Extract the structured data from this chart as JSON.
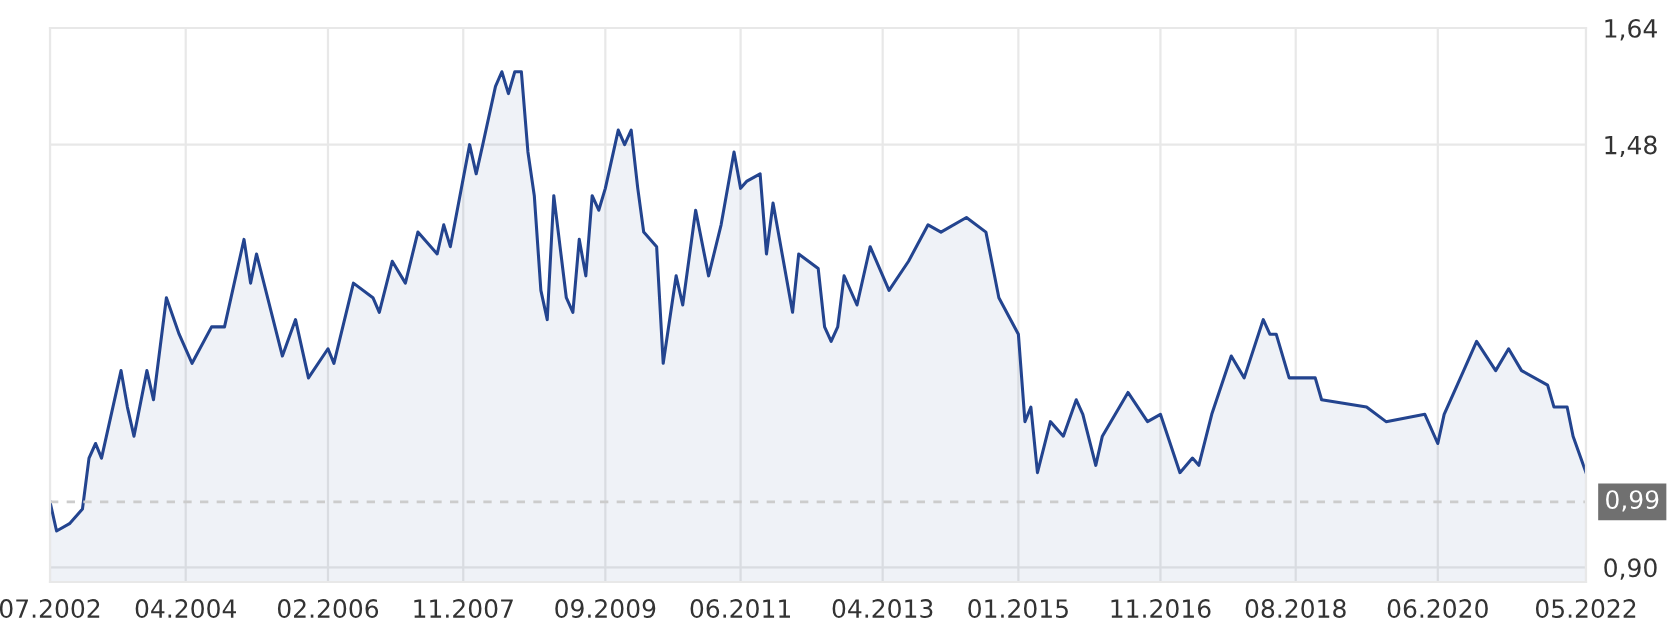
{
  "chart_data": {
    "type": "area",
    "x": [
      "2002-07",
      "2002-08",
      "2002-10",
      "2002-12",
      "2003-01",
      "2003-02",
      "2003-03",
      "2003-06",
      "2003-07",
      "2003-08",
      "2003-10",
      "2003-11",
      "2004-01",
      "2004-03",
      "2004-05",
      "2004-08",
      "2004-10",
      "2005-01",
      "2005-02",
      "2005-03",
      "2005-07",
      "2005-09",
      "2005-11",
      "2006-02",
      "2006-03",
      "2006-06",
      "2006-09",
      "2006-10",
      "2006-12",
      "2007-02",
      "2007-04",
      "2007-07",
      "2007-08",
      "2007-09",
      "2007-12",
      "2008-01",
      "2008-02",
      "2008-04",
      "2008-05",
      "2008-06",
      "2008-07",
      "2008-08",
      "2008-09",
      "2008-10",
      "2008-11",
      "2008-12",
      "2009-01",
      "2009-03",
      "2009-04",
      "2009-05",
      "2009-06",
      "2009-07",
      "2009-08",
      "2009-09",
      "2009-11",
      "2009-12",
      "2010-01",
      "2010-02",
      "2010-03",
      "2010-05",
      "2010-06",
      "2010-08",
      "2010-09",
      "2010-11",
      "2011-01",
      "2011-03",
      "2011-05",
      "2011-06",
      "2011-07",
      "2011-09",
      "2011-10",
      "2011-11",
      "2012-02",
      "2012-03",
      "2012-06",
      "2012-07",
      "2012-08",
      "2012-09",
      "2012-10",
      "2012-12",
      "2013-02",
      "2013-05",
      "2013-08",
      "2013-11",
      "2014-01",
      "2014-05",
      "2014-08",
      "2014-10",
      "2015-01",
      "2015-02",
      "2015-03",
      "2015-04",
      "2015-06",
      "2015-08",
      "2015-10",
      "2015-11",
      "2016-01",
      "2016-02",
      "2016-06",
      "2016-09",
      "2016-11",
      "2017-02",
      "2017-04",
      "2017-05",
      "2017-07",
      "2017-10",
      "2017-12",
      "2018-03",
      "2018-04",
      "2018-05",
      "2018-07",
      "2018-11",
      "2018-12",
      "2019-07",
      "2019-10",
      "2020-04",
      "2020-06",
      "2020-07",
      "2020-10",
      "2020-12",
      "2021-03",
      "2021-05",
      "2021-07",
      "2021-11",
      "2021-12",
      "2022-02",
      "2022-03",
      "2022-05"
    ],
    "series": [
      {
        "color": "#23448f",
        "values": [
          0.99,
          0.95,
          0.96,
          0.98,
          1.05,
          1.07,
          1.05,
          1.17,
          1.12,
          1.08,
          1.17,
          1.13,
          1.27,
          1.22,
          1.18,
          1.23,
          1.23,
          1.35,
          1.29,
          1.33,
          1.19,
          1.24,
          1.16,
          1.2,
          1.18,
          1.29,
          1.27,
          1.25,
          1.32,
          1.29,
          1.36,
          1.33,
          1.37,
          1.34,
          1.48,
          1.44,
          1.48,
          1.56,
          1.58,
          1.55,
          1.58,
          1.58,
          1.47,
          1.41,
          1.28,
          1.24,
          1.41,
          1.27,
          1.25,
          1.35,
          1.3,
          1.41,
          1.39,
          1.42,
          1.5,
          1.48,
          1.5,
          1.42,
          1.36,
          1.34,
          1.18,
          1.3,
          1.26,
          1.39,
          1.3,
          1.37,
          1.47,
          1.42,
          1.43,
          1.44,
          1.33,
          1.4,
          1.25,
          1.33,
          1.31,
          1.23,
          1.21,
          1.23,
          1.3,
          1.26,
          1.34,
          1.28,
          1.32,
          1.37,
          1.36,
          1.38,
          1.36,
          1.27,
          1.22,
          1.1,
          1.12,
          1.03,
          1.1,
          1.08,
          1.13,
          1.11,
          1.04,
          1.08,
          1.14,
          1.1,
          1.11,
          1.03,
          1.05,
          1.04,
          1.11,
          1.19,
          1.16,
          1.24,
          1.22,
          1.22,
          1.16,
          1.16,
          1.13,
          1.12,
          1.1,
          1.11,
          1.07,
          1.11,
          1.17,
          1.21,
          1.17,
          1.2,
          1.17,
          1.15,
          1.12,
          1.12,
          1.08,
          1.03
        ]
      }
    ],
    "xlim": [
      "2002-07",
      "2022-05"
    ],
    "xticks": [
      {
        "value": "2002-07",
        "label": "07.2002"
      },
      {
        "value": "2004-04",
        "label": "04.2004"
      },
      {
        "value": "2006-02",
        "label": "02.2006"
      },
      {
        "value": "2007-11",
        "label": "11.2007"
      },
      {
        "value": "2009-09",
        "label": "09.2009"
      },
      {
        "value": "2011-06",
        "label": "06.2011"
      },
      {
        "value": "2013-04",
        "label": "04.2013"
      },
      {
        "value": "2015-01",
        "label": "01.2015"
      },
      {
        "value": "2016-11",
        "label": "11.2016"
      },
      {
        "value": "2018-08",
        "label": "08.2018"
      },
      {
        "value": "2020-06",
        "label": "06.2020"
      },
      {
        "value": "2022-05",
        "label": "05.2022"
      }
    ],
    "ylim": [
      0.88,
      1.64
    ],
    "yticks": [
      {
        "value": 0.9,
        "label": "0,90"
      },
      {
        "value": 1.48,
        "label": "1,48"
      },
      {
        "value": 1.64,
        "label": "1,64"
      }
    ],
    "ref_lines": [
      {
        "axis": "y",
        "value": 0.99,
        "label": "0,99",
        "color": "#cccccc",
        "line_style": "dashed"
      }
    ],
    "grid": true,
    "legend": false
  }
}
